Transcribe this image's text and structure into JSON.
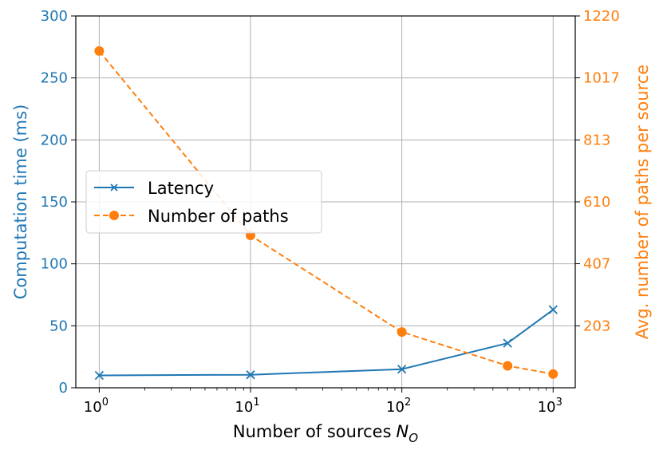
{
  "chart_data": {
    "type": "line",
    "xlabel": "Number of sources",
    "xlabel_symbol": "N",
    "xlabel_subscript": "O",
    "x_scale": "log",
    "xlim": [
      0.7,
      1400
    ],
    "x_ticks": [
      {
        "value": 1,
        "base": "10",
        "exp": "0"
      },
      {
        "value": 10,
        "base": "10",
        "exp": "1"
      },
      {
        "value": 100,
        "base": "10",
        "exp": "2"
      },
      {
        "value": 1000,
        "base": "10",
        "exp": "3"
      }
    ],
    "ylabel_left": "Computation time (ms)",
    "ylim_left": [
      0,
      300
    ],
    "yticks_left": [
      "0",
      "50",
      "100",
      "150",
      "200",
      "250",
      "300"
    ],
    "ylabel_right": "Avg. number of paths per source",
    "ylim_right": [
      0,
      1220
    ],
    "yticks_right": [
      "203",
      "407",
      "610",
      "813",
      "1017",
      "1220"
    ],
    "yticks_right_values": [
      203,
      407,
      610,
      813,
      1017,
      1220
    ],
    "grid": true,
    "legend_position": "center-left",
    "colors": {
      "latency": "#1f77b4",
      "paths": "#ff7f0e"
    },
    "series": [
      {
        "name": "Latency",
        "axis": "left",
        "style": "solid",
        "marker": "x",
        "x": [
          1,
          10,
          100,
          500,
          1000
        ],
        "values": [
          10,
          10.5,
          15,
          36,
          63
        ]
      },
      {
        "name": "Number of paths",
        "axis": "right",
        "style": "dashed",
        "marker": "circle",
        "x": [
          1,
          10,
          100,
          500,
          1000
        ],
        "values": [
          1105,
          500,
          183,
          72,
          45
        ]
      }
    ]
  }
}
